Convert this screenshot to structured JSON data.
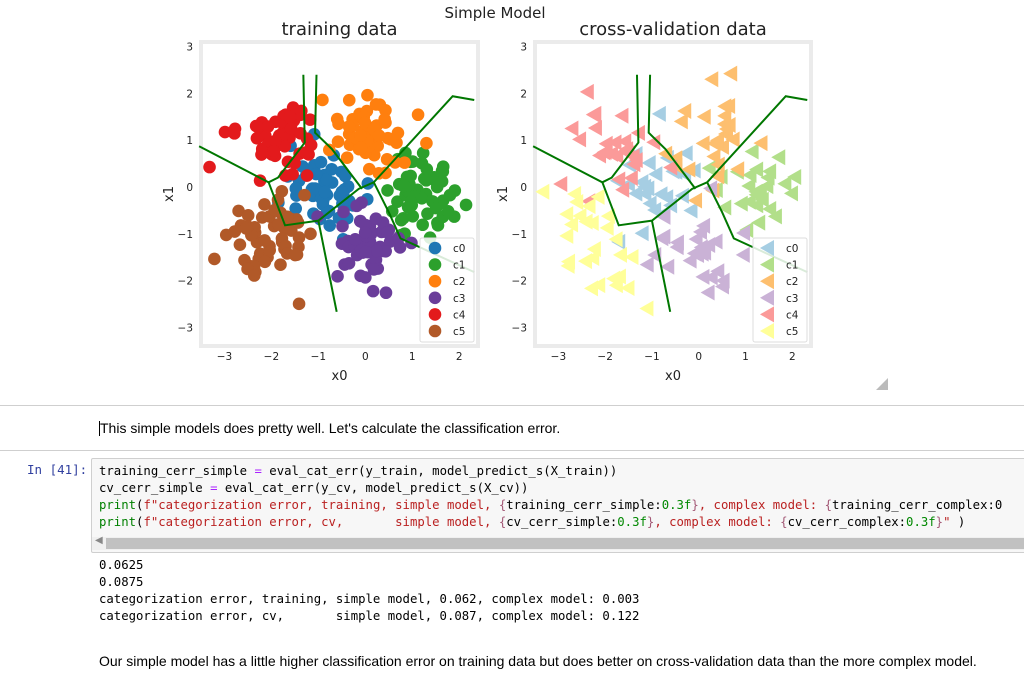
{
  "chart_data": {
    "type": "scatter",
    "title": "Simple Model",
    "subplots": [
      {
        "title": "training data",
        "marker": "circle",
        "xlabel": "x0",
        "ylabel": "x1",
        "seed": 7,
        "points_per_class": 55,
        "colors": [
          "#1f77b4",
          "#2ca02c",
          "#ff7f0e",
          "#6a3d9a",
          "#e31a1c",
          "#b15928"
        ]
      },
      {
        "title": "cross-validation data",
        "marker": "triangle-left",
        "xlabel": "x0",
        "ylabel": "x1",
        "seed": 19,
        "points_per_class": 28,
        "colors": [
          "#a6cee3",
          "#b2df8a",
          "#fdbf6f",
          "#cab2d6",
          "#fb9a99",
          "#ffff99"
        ]
      }
    ],
    "classes": [
      "c0",
      "c1",
      "c2",
      "c3",
      "c4",
      "c5"
    ],
    "cluster_centers": [
      [
        -0.9,
        0.0
      ],
      [
        1.2,
        -0.1
      ],
      [
        0.0,
        1.15
      ],
      [
        0.0,
        -1.2
      ],
      [
        -1.9,
        0.95
      ],
      [
        -2.0,
        -1.2
      ]
    ],
    "cluster_spread": [
      0.42,
      0.38,
      0.42,
      0.38,
      0.42,
      0.4
    ],
    "xlim": [
      -3.5,
      2.4
    ],
    "ylim": [
      -3.4,
      3.1
    ],
    "xticks": [
      -3,
      -2,
      -1,
      0,
      1,
      2
    ],
    "yticks": [
      -3,
      -2,
      -1,
      0,
      1,
      2,
      3
    ],
    "xtick_labels": [
      "−3",
      "−2",
      "−1",
      "0",
      "1",
      "2"
    ],
    "ytick_labels": [
      "−3",
      "−2",
      "−1",
      "0",
      "1",
      "2",
      "3"
    ],
    "boundary_color": "#007700",
    "decision_boundaries": [
      [
        [
          -3.54,
          0.87
        ],
        [
          -2.06,
          0.1
        ],
        [
          -1.71,
          -0.82
        ],
        [
          -1.0,
          -0.72
        ],
        [
          -0.14,
          -0.04
        ],
        [
          0.18,
          0.1
        ],
        [
          1.86,
          1.94
        ],
        [
          2.32,
          1.86
        ]
      ],
      [
        [
          -2.06,
          0.1
        ],
        [
          -1.86,
          0.2
        ],
        [
          -1.29,
          0.95
        ],
        [
          -1.32,
          2.4
        ]
      ],
      [
        [
          -1.04,
          2.4
        ],
        [
          -1.07,
          1.16
        ],
        [
          -0.71,
          0.81
        ],
        [
          -0.07,
          -0.04
        ]
      ],
      [
        [
          -1.0,
          -0.72
        ],
        [
          -0.61,
          -2.67
        ]
      ],
      [
        [
          0.18,
          0.1
        ],
        [
          0.5,
          -0.54
        ],
        [
          0.75,
          -1.1
        ],
        [
          2.32,
          -1.82
        ]
      ]
    ],
    "legend_position": "lower-right"
  },
  "markdown_1": "This simple models does pretty well. Let's calculate the classification error.",
  "cell": {
    "prompt": "In [41]:",
    "code_lines": [
      [
        {
          "t": "training_cerr_simple ",
          "c": "t"
        },
        {
          "t": "=",
          "c": "o"
        },
        {
          "t": " eval_cat_err(y_train, model_predict_s(X_train))",
          "c": "t"
        }
      ],
      [
        {
          "t": "cv_cerr_simple ",
          "c": "t"
        },
        {
          "t": "=",
          "c": "o"
        },
        {
          "t": " eval_cat_err(y_cv, model_predict_s(X_cv))",
          "c": "t"
        }
      ],
      [
        {
          "t": "print",
          "c": "b"
        },
        {
          "t": "(",
          "c": "t"
        },
        {
          "t": "f\"categorization error, training, simple model, ",
          "c": "s"
        },
        {
          "t": "{",
          "c": "i"
        },
        {
          "t": "training_cerr_simple:",
          "c": "t"
        },
        {
          "t": "0.3f",
          "c": "n"
        },
        {
          "t": "}",
          "c": "i"
        },
        {
          "t": ", complex model: ",
          "c": "s"
        },
        {
          "t": "{",
          "c": "i"
        },
        {
          "t": "training_cerr_complex:0",
          "c": "t"
        }
      ],
      [
        {
          "t": "print",
          "c": "b"
        },
        {
          "t": "(",
          "c": "t"
        },
        {
          "t": "f\"categorization error, cv,       simple model, ",
          "c": "s"
        },
        {
          "t": "{",
          "c": "i"
        },
        {
          "t": "cv_cerr_simple:",
          "c": "t"
        },
        {
          "t": "0.3f",
          "c": "n"
        },
        {
          "t": "}",
          "c": "i"
        },
        {
          "t": ", complex model: ",
          "c": "s"
        },
        {
          "t": "{",
          "c": "i"
        },
        {
          "t": "cv_cerr_complex:",
          "c": "t"
        },
        {
          "t": "0.3f",
          "c": "n"
        },
        {
          "t": "}",
          "c": "i"
        },
        {
          "t": "\"",
          "c": "s"
        },
        {
          "t": " )",
          "c": "t"
        }
      ]
    ],
    "output_lines": [
      "0.0625",
      "0.0875",
      "categorization error, training, simple model, 0.062, complex model: 0.003",
      "categorization error, cv,       simple model, 0.087, complex model: 0.122"
    ]
  },
  "markdown_2": "Our simple model has a little higher classification error on training data but does better on cross-validation data than the more complex model."
}
